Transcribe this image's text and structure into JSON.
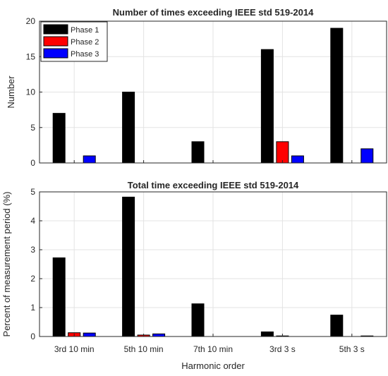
{
  "chart_data": [
    {
      "type": "bar",
      "title": "Number of times exceeding IEEE std 519-2014",
      "xlabel": "",
      "ylabel": "Number",
      "ylim": [
        0,
        20
      ],
      "yticks": [
        0,
        5,
        10,
        15,
        20
      ],
      "categories": [
        "3rd 10 min",
        "5th 10 min",
        "7th 10 min",
        "3rd 3 s",
        "5th 3 s"
      ],
      "grid": true,
      "legend_position": "top-left",
      "series": [
        {
          "name": "Phase 1",
          "color": "#000000",
          "values": [
            7,
            10,
            3,
            16,
            19
          ]
        },
        {
          "name": "Phase 2",
          "color": "#ff0000",
          "values": [
            0,
            0,
            0,
            3,
            0
          ]
        },
        {
          "name": "Phase 3",
          "color": "#0000ff",
          "values": [
            1,
            0,
            0,
            1,
            2
          ]
        }
      ]
    },
    {
      "type": "bar",
      "title": "Total time exceeding IEEE std 519-2014",
      "xlabel": "Harmonic order",
      "ylabel": "Percent of measurement period (%)",
      "ylim": [
        0,
        5
      ],
      "yticks": [
        0,
        1,
        2,
        3,
        4,
        5
      ],
      "categories": [
        "3rd 10 min",
        "5th 10 min",
        "7th 10 min",
        "3rd 3 s",
        "5th 3 s"
      ],
      "grid": true,
      "series": [
        {
          "name": "Phase 1",
          "color": "#000000",
          "values": [
            2.72,
            4.82,
            1.13,
            0.16,
            0.74
          ]
        },
        {
          "name": "Phase 2",
          "color": "#ff0000",
          "values": [
            0.13,
            0.05,
            0.0,
            0.02,
            0.0
          ]
        },
        {
          "name": "Phase 3",
          "color": "#0000ff",
          "values": [
            0.12,
            0.09,
            0.0,
            0.0,
            0.02
          ]
        }
      ]
    }
  ]
}
